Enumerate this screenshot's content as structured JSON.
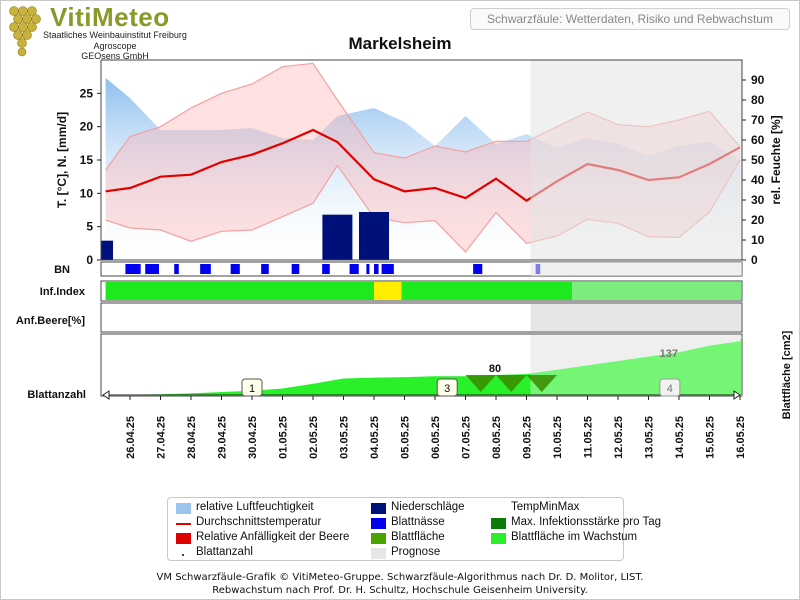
{
  "header": {
    "logo_title": "VitiMeteo",
    "logo_lines": [
      "Staatliches Weinbauinstitut Freiburg",
      "Agroscope",
      "GEOsens GmbH"
    ],
    "subtitle": "Schwarzfäule: Wetterdaten, Risiko und Rebwachstum"
  },
  "chart_data": {
    "type": "line",
    "title": "Markelsheim",
    "dates": [
      "26.04.25",
      "27.04.25",
      "28.04.25",
      "29.04.25",
      "30.04.25",
      "01.05.25",
      "02.05.25",
      "03.05.25",
      "04.05.25",
      "05.05.25",
      "06.05.25",
      "07.05.25",
      "08.05.25",
      "09.05.25",
      "10.05.25",
      "11.05.25",
      "12.05.25",
      "13.05.25",
      "14.05.25",
      "15.05.25",
      "16.05.25"
    ],
    "forecast_from": "09.05.25",
    "ylabel_left": "T. [°C], N. [mm/d]",
    "ylabel_right": "rel. Feuchte [%]",
    "ylim_left": [
      0,
      30
    ],
    "yticks_left": [
      0,
      5,
      10,
      15,
      20,
      25
    ],
    "ylim_right": [
      0,
      100
    ],
    "yticks_right": [
      0,
      10,
      20,
      30,
      40,
      50,
      60,
      70,
      80,
      90
    ],
    "temp_x": [
      -0.8,
      0,
      1,
      2,
      3,
      4,
      5,
      6,
      6.8,
      8,
      9,
      10,
      11,
      12,
      13,
      14,
      15,
      16,
      17,
      18,
      19,
      20
    ],
    "temp_mean": [
      10.3,
      10.8,
      12.5,
      12.8,
      14.7,
      15.8,
      17.5,
      19.5,
      17.7,
      12.1,
      10.3,
      10.8,
      9.3,
      12.2,
      8.9,
      11.8,
      14.4,
      13.5,
      12.0,
      12.4,
      14.4,
      16.9
    ],
    "temp_max": [
      13.5,
      18.5,
      20.0,
      22.8,
      25.0,
      26.4,
      29.0,
      29.5,
      24.0,
      16.1,
      15.3,
      17.1,
      16.2,
      17.8,
      17.8,
      20.0,
      22.2,
      20.3,
      20.0,
      21.0,
      22.3,
      17.0
    ],
    "temp_min": [
      6.0,
      4.8,
      4.5,
      2.8,
      4.3,
      4.5,
      6.5,
      8.5,
      14.2,
      6.4,
      5.6,
      5.9,
      1.2,
      7.1,
      2.5,
      3.6,
      6.1,
      5.5,
      3.5,
      3.4,
      7.2,
      15.0
    ],
    "humidity": [
      91,
      81,
      65,
      65,
      65,
      66,
      61,
      60,
      72,
      76,
      69,
      57,
      72,
      58,
      63,
      56,
      61,
      58,
      52,
      57,
      59,
      50
    ],
    "precipitation": [
      2.9,
      0,
      0,
      0,
      0,
      0,
      0,
      0,
      6.8,
      7.2,
      0,
      0,
      0,
      0,
      0,
      0,
      0,
      0,
      0,
      0,
      0,
      0
    ],
    "rows": {
      "bn_label": "BN",
      "inf_label": "Inf.Index",
      "anf_label": "Anf.Beere[%]",
      "blatt_label": "Blattanzahl",
      "blattflaeche_label": "Blattfläche [cm2]"
    },
    "blattnaesse_intervals": [
      [
        -0.15,
        0.35
      ],
      [
        0.5,
        0.95
      ],
      [
        1.45,
        1.6
      ],
      [
        2.3,
        2.65
      ],
      [
        3.3,
        3.6
      ],
      [
        4.3,
        4.55
      ],
      [
        5.3,
        5.55
      ],
      [
        6.3,
        6.55
      ],
      [
        7.2,
        7.5
      ],
      [
        7.75,
        7.85
      ],
      [
        8.0,
        8.15
      ],
      [
        8.25,
        8.65
      ],
      [
        11.25,
        11.55
      ],
      [
        13.3,
        13.45
      ]
    ],
    "infection_index": [
      {
        "from": -0.8,
        "to": 8.0,
        "level": "niedrig",
        "color": "#1ee81e"
      },
      {
        "from": 8.0,
        "to": 8.9,
        "level": "mittel",
        "color": "#ffee00"
      },
      {
        "from": 8.9,
        "to": 14.5,
        "level": "niedrig",
        "color": "#1ee81e"
      },
      {
        "from": 14.5,
        "to": 20.8,
        "level": "Prognose",
        "color": "#7cec7c"
      }
    ],
    "blattflaeche_x": [
      -0.8,
      0,
      1,
      2,
      3,
      4,
      5,
      6,
      7,
      8,
      9,
      10,
      11,
      12,
      13,
      14,
      15,
      16,
      17,
      18,
      19,
      20,
      20.8
    ],
    "blattflaeche_values": [
      2,
      3,
      4,
      6,
      9,
      12,
      17,
      28,
      40,
      42,
      43,
      45,
      45,
      48,
      50,
      60,
      70,
      80,
      90,
      100,
      115,
      125,
      137
    ],
    "blattflaeche_labels": [
      {
        "x": 12.0,
        "text": "80"
      },
      {
        "x": 17.7,
        "text": "137"
      }
    ],
    "blatt_markers": [
      {
        "x": 4.0,
        "text": "1"
      },
      {
        "x": 10.4,
        "text": "3"
      },
      {
        "x": 17.7,
        "text": "4"
      }
    ]
  },
  "legend": [
    {
      "label": "relative Luftfeuchtigkeit",
      "color": "#9cc5ec",
      "kind": "box"
    },
    {
      "label": "Niederschläge",
      "color": "#00107a",
      "kind": "box"
    },
    {
      "label": "TempMinMax",
      "color": "",
      "kind": "none"
    },
    {
      "label": "Durchschnittstemperatur",
      "color": "#e00000",
      "kind": "line"
    },
    {
      "label": "Blattnässe",
      "color": "#0000ee",
      "kind": "box"
    },
    {
      "label": "Max. Infektionsstärke pro Tag",
      "color": "#0a7a0a",
      "kind": "box"
    },
    {
      "label": "Relative Anfälligkeit der Beere",
      "color": "#e00000",
      "kind": "box"
    },
    {
      "label": "Blattfläche",
      "color": "#4aa300",
      "kind": "box"
    },
    {
      "label": "Blattfläche im Wachstum",
      "color": "#2af02a",
      "kind": "box"
    },
    {
      "label": "Blattanzahl",
      "color": "#444444",
      "kind": "dot"
    },
    {
      "label": "Prognose",
      "color": "#e6e6e6",
      "kind": "box"
    }
  ],
  "footer": {
    "line1": "VM Schwarzfäule-Grafik © VitiMeteo-Gruppe. Schwarzfäule-Algorithmus nach Dr. D. Molitor, LIST.",
    "line2": "Rebwachstum nach Prof. Dr. H. Schultz, Hochschule Geisenheim University."
  }
}
